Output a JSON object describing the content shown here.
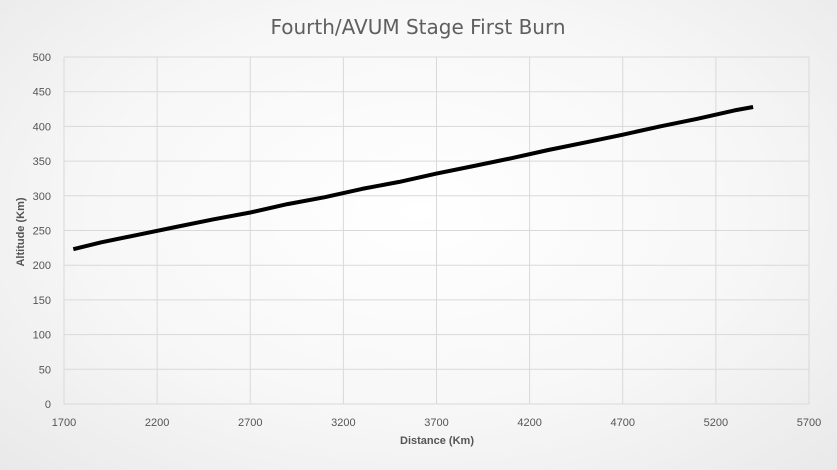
{
  "chart_data": {
    "type": "line",
    "title": "Fourth/AVUM Stage First Burn",
    "xlabel": "Distance (Km)",
    "ylabel": "Altitude (Km)",
    "xlim": [
      1700,
      5700
    ],
    "ylim": [
      0,
      500
    ],
    "xticks": [
      1700,
      2200,
      2700,
      3200,
      3700,
      4200,
      4700,
      5200,
      5700
    ],
    "yticks": [
      0,
      50,
      100,
      150,
      200,
      250,
      300,
      350,
      400,
      450,
      500
    ],
    "grid": true,
    "legend": "none",
    "series": [
      {
        "color": "#000000",
        "x": [
          1750,
          1900,
          2100,
          2300,
          2500,
          2700,
          2900,
          3100,
          3300,
          3500,
          3700,
          3900,
          4100,
          4300,
          4500,
          4700,
          4900,
          5100,
          5300,
          5400
        ],
        "y": [
          223,
          233,
          244,
          255,
          266,
          276,
          288,
          298,
          310,
          320,
          332,
          343,
          354,
          366,
          377,
          388,
          400,
          411,
          423,
          428
        ]
      }
    ]
  }
}
